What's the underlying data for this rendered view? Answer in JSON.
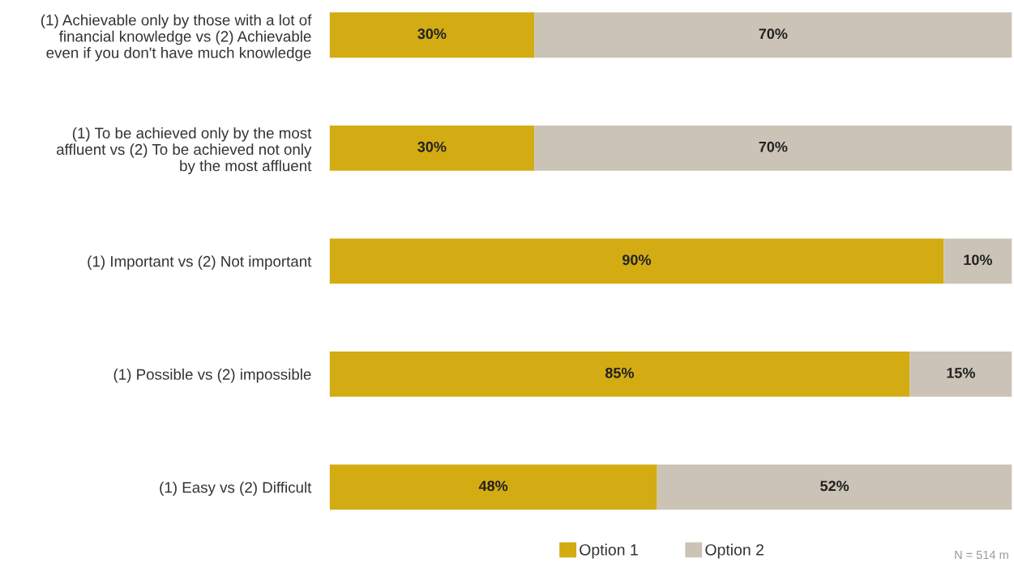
{
  "chart_data": {
    "type": "bar",
    "orientation": "horizontal",
    "stacked": true,
    "categories": [
      "(1) Achievable only by those with a lot of\nfinancial knowledge vs (2) Achievable\neven if you don't have much knowledge",
      "(1) To be achieved only by the most\naffluent vs (2) To be achieved not only\nby the most affluent",
      "(1) Important vs (2) Not important",
      "(1) Possible vs (2) impossible",
      "(1) Easy vs (2) Difficult"
    ],
    "series": [
      {
        "name": "Option 1",
        "color": "#d3ab12",
        "values": [
          30,
          30,
          90,
          85,
          48
        ],
        "value_labels": [
          "30%",
          "30%",
          "90%",
          "85%",
          "48%"
        ]
      },
      {
        "name": "Option 2",
        "color": "#cbc3b6",
        "values": [
          70,
          70,
          10,
          15,
          52
        ],
        "value_labels": [
          "70%",
          "70%",
          "10%",
          "15%",
          "52%"
        ]
      }
    ],
    "xlim": [
      0,
      100
    ],
    "tick_labels": "y",
    "grid": false,
    "legend": "bottom",
    "annotations": [
      "N = 514 m"
    ]
  }
}
